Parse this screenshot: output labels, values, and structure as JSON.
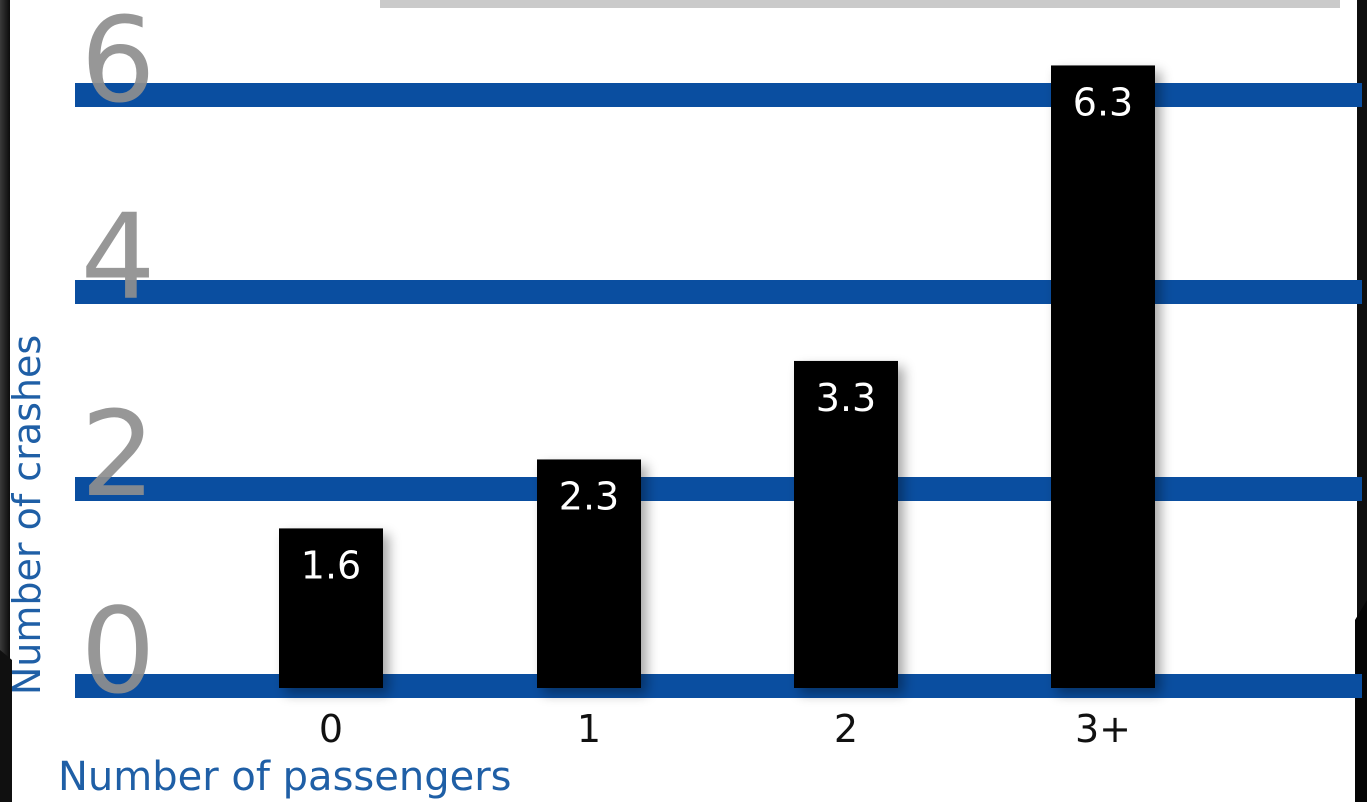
{
  "chart_data": {
    "type": "bar",
    "categories": [
      "0",
      "1",
      "2",
      "3+"
    ],
    "values": [
      1.6,
      2.3,
      3.3,
      6.3
    ],
    "value_labels": [
      "1.6",
      "2.3",
      "3.3",
      "6.3"
    ],
    "title": "",
    "xlabel": "Number of passengers",
    "ylabel": "Number of crashes",
    "ylim": [
      0,
      6.3
    ],
    "yticks": [
      "0",
      "2",
      "4",
      "6"
    ],
    "ytick_values": [
      0,
      2,
      4,
      6
    ],
    "grid": true,
    "legend": "none",
    "colors": {
      "bar": "#000000",
      "gridline": "#0a4ea0",
      "tick_label": "#8e8e8e",
      "axis_label": "#1f5fa6",
      "value_label": "#ffffff",
      "category_label": "#111111",
      "frame": "#1a1a1a"
    }
  }
}
